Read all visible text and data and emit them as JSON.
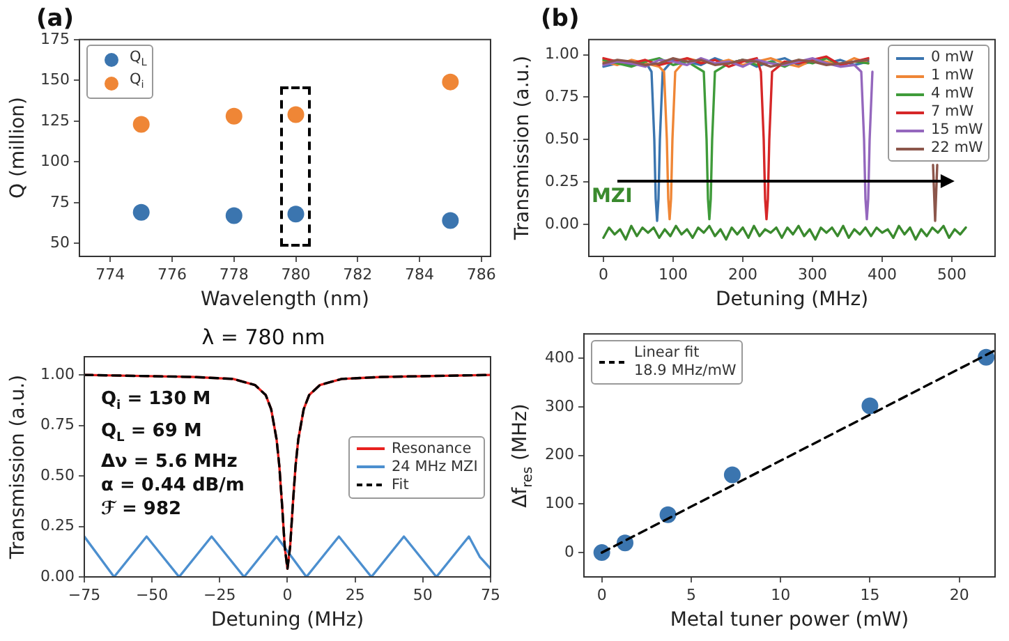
{
  "chart_data": [
    {
      "type": "scatter",
      "title": "(a)",
      "xlabel": "Wavelength (nm)",
      "ylabel": "Q (million)",
      "xlim": [
        773,
        786.3
      ],
      "xticks": [
        774,
        776,
        778,
        780,
        782,
        784,
        786
      ],
      "ylim": [
        42,
        175
      ],
      "yticks": [
        50,
        75,
        100,
        125,
        150,
        175
      ],
      "x": [
        775,
        778,
        780,
        785
      ],
      "marker": "circle",
      "legend": "top left",
      "grid": false,
      "series": [
        {
          "name": "Q$_{L}$",
          "color": "#3b75af",
          "values": [
            69,
            67,
            68,
            64
          ]
        },
        {
          "name": "Q$_{i}$",
          "color": "#ef8636",
          "values": [
            123,
            128,
            129,
            149
          ]
        }
      ]
    },
    {
      "type": "line",
      "title": "(b)",
      "xlabel": "Detuning (MHz)",
      "ylabel": "Transmission (a.u.)",
      "xlim": [
        -21,
        562
      ],
      "xticks": [
        0,
        100,
        200,
        300,
        400,
        500
      ],
      "ylim": [
        -0.19,
        1.09
      ],
      "yticks": [
        {
          "value": 0,
          "label": "0.00"
        },
        {
          "value": 0.25,
          "label": "0.25"
        },
        {
          "value": 0.5,
          "label": "0.50"
        },
        {
          "value": 0.75,
          "label": "0.75"
        },
        {
          "value": 1,
          "label": "1.00"
        }
      ],
      "legend": "top right",
      "grid": false,
      "marker": "none",
      "line_style": "solid",
      "annotations": [
        "MZI"
      ],
      "series": [
        {
          "name": "0 mW",
          "color": "#3b75af",
          "x": [
            0,
            20,
            40,
            60,
            69,
            73,
            75,
            77,
            79,
            81,
            85,
            100,
            120,
            140,
            160,
            180,
            200,
            220,
            240,
            260,
            280,
            300,
            320,
            340,
            360,
            380
          ],
          "values": [
            0.93,
            0.95,
            0.94,
            0.96,
            0.9,
            0.5,
            0.15,
            0.02,
            0.15,
            0.5,
            0.9,
            0.97,
            0.96,
            0.94,
            0.98,
            0.95,
            0.97,
            0.93,
            0.96,
            0.98,
            0.94,
            0.96,
            0.95,
            0.97,
            0.94,
            0.96
          ]
        },
        {
          "name": "1 mW",
          "color": "#ef8636",
          "x": [
            0,
            20,
            40,
            60,
            80,
            87,
            91,
            93,
            95,
            97,
            99,
            103,
            120,
            140,
            160,
            180,
            200,
            220,
            240,
            260,
            280,
            300,
            320,
            340,
            360,
            380
          ],
          "values": [
            0.96,
            0.94,
            0.97,
            0.95,
            0.93,
            0.9,
            0.5,
            0.15,
            0.03,
            0.15,
            0.5,
            0.9,
            0.98,
            0.96,
            0.95,
            0.97,
            0.94,
            0.96,
            0.98,
            0.95,
            0.93,
            0.97,
            0.96,
            0.94,
            0.98,
            0.95
          ]
        },
        {
          "name": "4 mW",
          "color": "#3f9b3a",
          "x": [
            0,
            20,
            40,
            60,
            80,
            100,
            120,
            144,
            148,
            150,
            152,
            154,
            156,
            160,
            180,
            200,
            220,
            240,
            260,
            280,
            300,
            320,
            340,
            360,
            380
          ],
          "values": [
            0.97,
            0.95,
            0.93,
            0.96,
            0.98,
            0.94,
            0.96,
            0.9,
            0.5,
            0.15,
            0.03,
            0.15,
            0.5,
            0.9,
            0.95,
            0.97,
            0.94,
            0.96,
            0.93,
            0.97,
            0.95,
            0.98,
            0.94,
            0.96,
            0.95
          ]
        },
        {
          "name": "7 mW",
          "color": "#d62728",
          "x": [
            0,
            20,
            40,
            60,
            80,
            100,
            120,
            140,
            160,
            180,
            200,
            220,
            226,
            230,
            232,
            234,
            236,
            238,
            242,
            260,
            280,
            300,
            320,
            340,
            360,
            380
          ],
          "values": [
            0.98,
            0.96,
            0.95,
            0.97,
            0.94,
            0.96,
            0.98,
            0.95,
            0.97,
            0.93,
            0.96,
            0.98,
            0.9,
            0.5,
            0.15,
            0.03,
            0.15,
            0.5,
            0.9,
            0.96,
            0.95,
            0.97,
            0.99,
            0.94,
            0.96,
            0.98
          ]
        },
        {
          "name": "15 mW",
          "color": "#9467bd",
          "x": [
            0,
            20,
            40,
            60,
            80,
            100,
            120,
            140,
            160,
            180,
            200,
            220,
            240,
            260,
            280,
            300,
            320,
            340,
            360,
            370,
            374,
            376,
            378,
            380,
            382,
            386
          ],
          "values": [
            0.94,
            0.96,
            0.95,
            0.93,
            0.97,
            0.96,
            0.94,
            0.98,
            0.95,
            0.96,
            0.93,
            0.97,
            0.95,
            0.94,
            0.96,
            0.98,
            0.95,
            0.93,
            0.94,
            0.9,
            0.5,
            0.15,
            0.03,
            0.15,
            0.5,
            0.9
          ]
        },
        {
          "name": "22 mW",
          "color": "#8c564b",
          "x": [
            0,
            20,
            40,
            60,
            80,
            100,
            120,
            140,
            160,
            180,
            200,
            220,
            240,
            260,
            280,
            300,
            320,
            340,
            360,
            380,
            430,
            473,
            476,
            479
          ],
          "values": [
            0.95,
            0.97,
            0.96,
            0.94,
            0.95,
            0.98,
            0.96,
            0.97,
            0.94,
            0.95,
            0.97,
            0.96,
            0.93,
            0.95,
            0.97,
            0.96,
            0.94,
            0.95,
            0.96,
            0.97,
            null,
            0.35,
            0.02,
            0.35
          ]
        },
        {
          "color": "#3a8a2e",
          "x": [
            0,
            8,
            16,
            24,
            32,
            40,
            48,
            56,
            64,
            72,
            80,
            88,
            96,
            104,
            112,
            120,
            128,
            136,
            144,
            152,
            160,
            168,
            176,
            184,
            192,
            200,
            208,
            216,
            224,
            232,
            240,
            248,
            256,
            264,
            272,
            280,
            288,
            296,
            304,
            312,
            320,
            328,
            336,
            344,
            352,
            360,
            368,
            376,
            384,
            392,
            400,
            408,
            416,
            424,
            432,
            440,
            448,
            456,
            464,
            472,
            480,
            488,
            496,
            504,
            512,
            520
          ],
          "values": [
            -0.08,
            -0.02,
            -0.06,
            -0.03,
            -0.09,
            -0.01,
            -0.07,
            -0.02,
            -0.05,
            -0.02,
            -0.08,
            -0.03,
            -0.07,
            -0.01,
            -0.06,
            -0.03,
            -0.08,
            -0.02,
            -0.05,
            -0.01,
            -0.07,
            -0.03,
            -0.09,
            -0.02,
            -0.06,
            -0.02,
            -0.08,
            -0.01,
            -0.07,
            -0.03,
            -0.05,
            -0.02,
            -0.08,
            -0.02,
            -0.06,
            -0.01,
            -0.07,
            -0.03,
            -0.09,
            -0.02,
            -0.05,
            -0.02,
            -0.07,
            -0.01,
            -0.08,
            -0.03,
            -0.06,
            -0.02,
            -0.07,
            -0.02,
            -0.05,
            -0.03,
            -0.08,
            -0.01,
            -0.06,
            -0.02,
            -0.09,
            -0.03,
            -0.07,
            -0.02,
            -0.05,
            -0.01,
            -0.08,
            -0.03,
            -0.06,
            -0.02
          ]
        }
      ]
    },
    {
      "type": "line",
      "title": "λ = 780 nm",
      "xlabel": "Detuning (MHz)",
      "ylabel": "Transmission (a.u.)",
      "xlim": [
        -75,
        75
      ],
      "xticks": [
        {
          "value": -75,
          "label": "−75"
        },
        {
          "value": -50,
          "label": "−50"
        },
        {
          "value": -25,
          "label": "−25"
        },
        0,
        25,
        50,
        75
      ],
      "ylim": [
        0,
        1.09
      ],
      "yticks": [
        {
          "value": 0,
          "label": "0.00"
        },
        {
          "value": 0.25,
          "label": "0.25"
        },
        {
          "value": 0.5,
          "label": "0.50"
        },
        {
          "value": 0.75,
          "label": "0.75"
        },
        {
          "value": 1,
          "label": "1.00"
        }
      ],
      "legend": "center right",
      "grid": false,
      "marker": "none",
      "annotations": [
        "Q$_{i}$ = 130 M",
        "Q$_{L}$ = 69 M",
        "Δν = 5.6 MHz",
        "α = 0.44 dB/m",
        "ℱ = 982"
      ],
      "x": [
        -75,
        -35,
        -20,
        -12,
        -8,
        -6,
        -4,
        -3,
        -2,
        -1,
        0,
        1,
        2,
        3,
        4,
        6,
        8,
        12,
        20,
        35,
        75
      ],
      "series": [
        {
          "name": "Resonance",
          "color": "#e8211f",
          "line_style": "solid",
          "values": [
            1.0,
            0.99,
            0.98,
            0.95,
            0.9,
            0.83,
            0.68,
            0.55,
            0.36,
            0.15,
            0.04,
            0.15,
            0.36,
            0.55,
            0.68,
            0.83,
            0.9,
            0.95,
            0.98,
            0.99,
            1.0
          ]
        },
        {
          "name": "24 MHz MZI",
          "color": "#4c8fcf",
          "line_style": "solid",
          "x": [
            -75,
            -69.5,
            -64,
            -58,
            -52,
            -46,
            -40,
            -34,
            -28,
            -22,
            -16,
            -10,
            -4,
            1.5,
            7,
            13,
            19,
            25,
            31,
            37,
            43,
            49,
            55,
            61,
            67,
            71,
            75
          ],
          "values": [
            0.2,
            0.1,
            0,
            0.1,
            0.2,
            0.1,
            0,
            0.1,
            0.2,
            0.1,
            0,
            0.1,
            0.2,
            0.1,
            0,
            0.1,
            0.2,
            0.1,
            0,
            0.1,
            0.2,
            0.1,
            0,
            0.1,
            0.2,
            0.1,
            0.04
          ]
        },
        {
          "name": "Fit",
          "color": "#000000",
          "line_style": "dashed",
          "values": [
            1.0,
            0.99,
            0.98,
            0.95,
            0.9,
            0.83,
            0.68,
            0.55,
            0.36,
            0.15,
            0.04,
            0.15,
            0.36,
            0.55,
            0.68,
            0.83,
            0.9,
            0.95,
            0.98,
            0.99,
            1.0
          ]
        }
      ]
    },
    {
      "type": "scatter",
      "xlabel": "Metal tuner power (mW)",
      "ylabel": "Δf$_{res}$ (MHz)",
      "xlim": [
        -1,
        22
      ],
      "xticks": [
        0,
        5,
        10,
        15,
        20
      ],
      "ylim": [
        -50,
        450
      ],
      "yticks": [
        0,
        100,
        200,
        300,
        400
      ],
      "legend": "top left",
      "grid": false,
      "marker": "circle",
      "series": [
        {
          "color": "#3b75af",
          "x": [
            0,
            1.3,
            3.7,
            7.3,
            15,
            21.5
          ],
          "values": [
            0,
            20,
            78,
            160,
            302,
            402
          ]
        },
        {
          "type": "line",
          "name": "Linear fit\n18.9 MHz/mW",
          "color": "#000000",
          "line_style": "dashed",
          "marker": "none",
          "x": [
            0,
            22
          ],
          "values": [
            0,
            416
          ]
        }
      ]
    }
  ]
}
